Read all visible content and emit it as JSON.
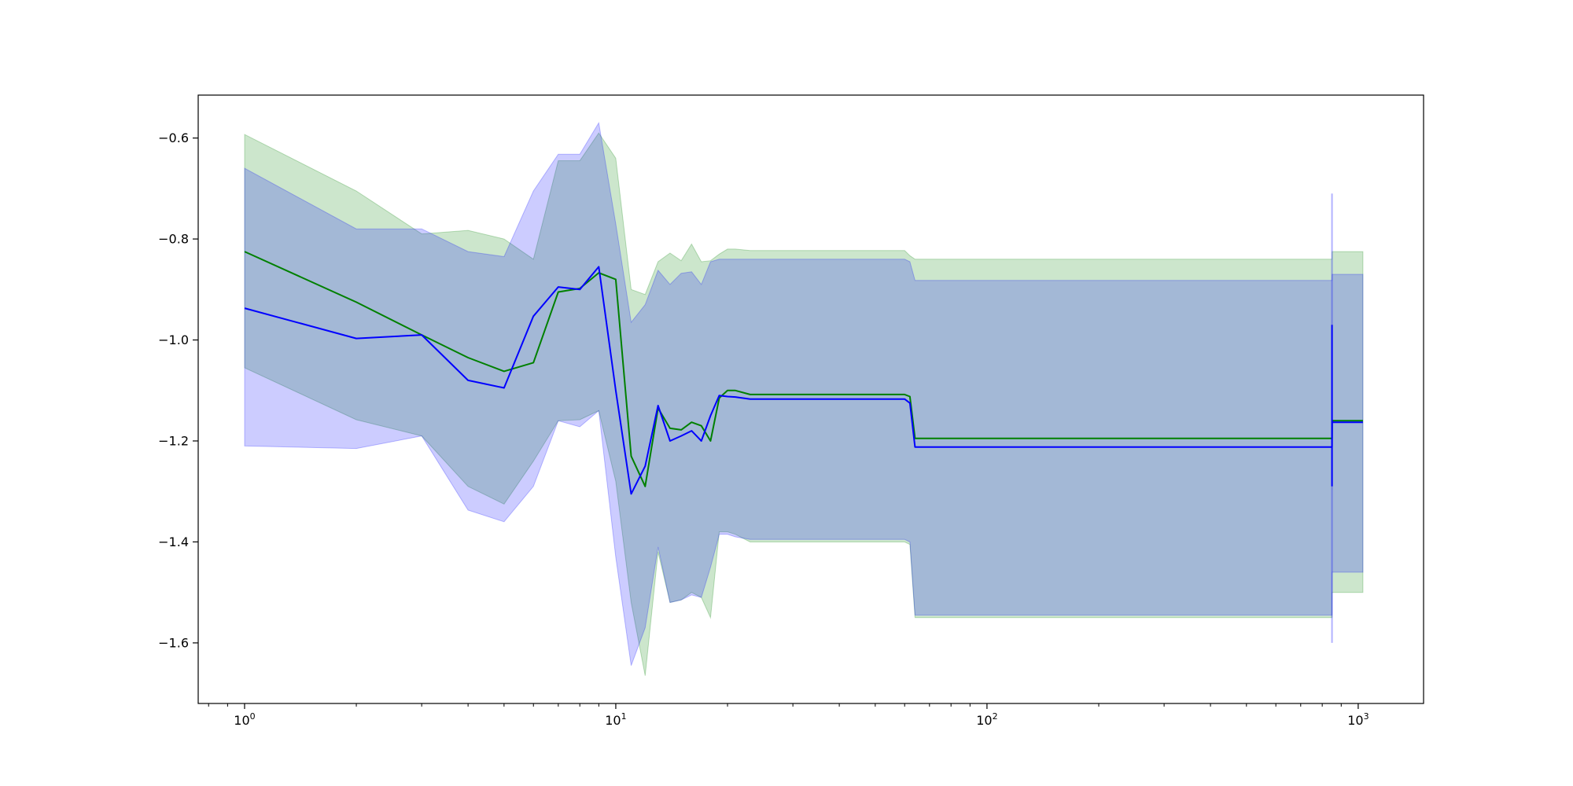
{
  "chart_data": {
    "type": "line",
    "title": "",
    "xlabel": "",
    "ylabel": "",
    "xscale": "log",
    "xlim": [
      0.75,
      1500
    ],
    "ylim": [
      -1.72,
      -0.515
    ],
    "grid": false,
    "legend": "none",
    "x_ticks": [
      {
        "base": "10",
        "exp": "0",
        "value": 1
      },
      {
        "base": "10",
        "exp": "1",
        "value": 10
      },
      {
        "base": "10",
        "exp": "2",
        "value": 100
      },
      {
        "base": "10",
        "exp": "3",
        "value": 1000
      }
    ],
    "y_ticks": [
      {
        "label": "−0.6",
        "value": -0.6
      },
      {
        "label": "−0.8",
        "value": -0.8
      },
      {
        "label": "−1.0",
        "value": -1.0
      },
      {
        "label": "−1.2",
        "value": -1.2
      },
      {
        "label": "−1.4",
        "value": -1.4
      },
      {
        "label": "−1.6",
        "value": -1.6
      }
    ],
    "series": [
      {
        "color": "#008000",
        "band_color": "#008000",
        "x": [
          1,
          2,
          3,
          4,
          5,
          6,
          7,
          8,
          9,
          10,
          11,
          12,
          13,
          14,
          15,
          16,
          17,
          18,
          19,
          20,
          21,
          23,
          60,
          62,
          64,
          850,
          850.5,
          1030
        ],
        "y": [
          -0.825,
          -0.925,
          -0.99,
          -1.035,
          -1.062,
          -1.045,
          -0.905,
          -0.898,
          -0.867,
          -0.88,
          -1.23,
          -1.29,
          -1.135,
          -1.175,
          -1.178,
          -1.163,
          -1.17,
          -1.2,
          -1.115,
          -1.1,
          -1.1,
          -1.108,
          -1.108,
          -1.112,
          -1.195,
          -1.195,
          -1.16,
          -1.16
        ],
        "lower": [
          -1.055,
          -1.158,
          -1.19,
          -1.29,
          -1.325,
          -1.24,
          -1.16,
          -1.158,
          -1.14,
          -1.28,
          -1.52,
          -1.665,
          -1.42,
          -1.52,
          -1.515,
          -1.5,
          -1.51,
          -1.55,
          -1.38,
          -1.38,
          -1.385,
          -1.4,
          -1.4,
          -1.405,
          -1.55,
          -1.55,
          -1.5,
          -1.5
        ],
        "upper": [
          -0.593,
          -0.705,
          -0.79,
          -0.783,
          -0.8,
          -0.84,
          -0.645,
          -0.645,
          -0.59,
          -0.64,
          -0.9,
          -0.91,
          -0.845,
          -0.828,
          -0.843,
          -0.81,
          -0.845,
          -0.843,
          -0.83,
          -0.82,
          -0.82,
          -0.823,
          -0.823,
          -0.833,
          -0.84,
          -0.84,
          -0.825,
          -0.825
        ]
      },
      {
        "color": "#0000ff",
        "band_color": "#0000ff",
        "x": [
          1,
          2,
          3,
          4,
          5,
          6,
          7,
          8,
          9,
          10,
          11,
          12,
          13,
          14,
          15,
          16,
          17,
          18,
          19,
          20,
          21,
          23,
          60,
          62,
          64,
          850,
          850.5,
          1030
        ],
        "y": [
          -0.937,
          -0.997,
          -0.99,
          -1.08,
          -1.095,
          -0.953,
          -0.895,
          -0.9,
          -0.855,
          -1.1,
          -1.305,
          -1.25,
          -1.13,
          -1.2,
          -1.19,
          -1.18,
          -1.2,
          -1.15,
          -1.11,
          -1.112,
          -1.113,
          -1.117,
          -1.117,
          -1.125,
          -1.212,
          -1.212,
          -1.163,
          -1.163
        ],
        "lower": [
          -1.21,
          -1.215,
          -1.19,
          -1.337,
          -1.36,
          -1.29,
          -1.16,
          -1.172,
          -1.14,
          -1.43,
          -1.645,
          -1.57,
          -1.41,
          -1.52,
          -1.515,
          -1.505,
          -1.51,
          -1.45,
          -1.385,
          -1.385,
          -1.39,
          -1.395,
          -1.395,
          -1.4,
          -1.545,
          -1.545,
          -1.46,
          -1.46
        ],
        "upper": [
          -0.66,
          -0.78,
          -0.78,
          -0.825,
          -0.835,
          -0.705,
          -0.632,
          -0.632,
          -0.57,
          -0.77,
          -0.965,
          -0.93,
          -0.862,
          -0.89,
          -0.868,
          -0.865,
          -0.89,
          -0.845,
          -0.84,
          -0.84,
          -0.84,
          -0.84,
          -0.84,
          -0.845,
          -0.882,
          -0.882,
          -0.87,
          -0.87
        ]
      }
    ],
    "spikes": [
      {
        "x": 850,
        "y_from": -0.97,
        "y_to": -1.29,
        "band_from": -0.71,
        "band_to": -1.6
      }
    ]
  }
}
